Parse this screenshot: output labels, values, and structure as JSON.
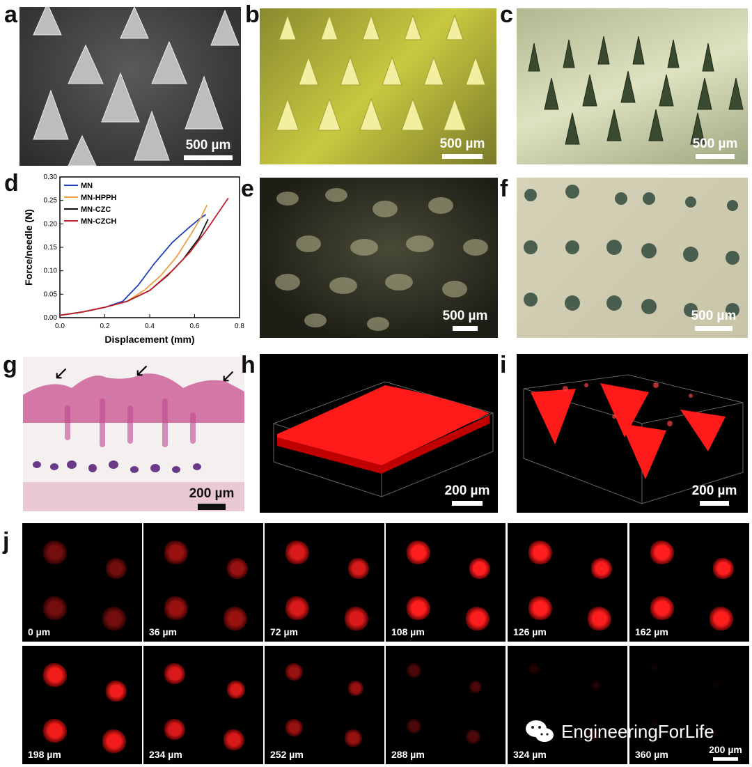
{
  "panels": {
    "a": {
      "label": "a",
      "scale": "500 µm"
    },
    "b": {
      "label": "b",
      "scale": "500 µm"
    },
    "c": {
      "label": "c",
      "scale": "500 µm"
    },
    "d": {
      "label": "d"
    },
    "e": {
      "label": "e",
      "scale": "500 µm"
    },
    "f": {
      "label": "f",
      "scale": "500 µm"
    },
    "g": {
      "label": "g",
      "scale": "200 µm"
    },
    "h": {
      "label": "h",
      "scale": "200 µm"
    },
    "i": {
      "label": "i",
      "scale": "200 µm"
    },
    "j": {
      "label": "j",
      "scale": "200 µm"
    }
  },
  "depths": [
    "0 µm",
    "36 µm",
    "72 µm",
    "108 µm",
    "126 µm",
    "162 µm",
    "198 µm",
    "234 µm",
    "252 µm",
    "288 µm",
    "324 µm",
    "360 µm"
  ],
  "watermark": {
    "text": "EngineeringForLife",
    "icon": "wechat-icon"
  },
  "chart_data": {
    "type": "line",
    "xlabel": "Displacement (mm)",
    "ylabel": "Force/needle (N)",
    "xlim": [
      0,
      0.8
    ],
    "ylim": [
      0,
      0.3
    ],
    "xticks": [
      "0.0",
      "0.2",
      "0.4",
      "0.6",
      "0.8"
    ],
    "yticks": [
      "0.00",
      "0.05",
      "0.10",
      "0.15",
      "0.20",
      "0.25",
      "0.30"
    ],
    "legend_position": "top-left",
    "series": [
      {
        "name": "MN",
        "color": "#1f3fbf",
        "x": [
          0,
          0.1,
          0.2,
          0.28,
          0.35,
          0.42,
          0.5,
          0.57,
          0.62,
          0.65
        ],
        "y": [
          0.005,
          0.012,
          0.022,
          0.035,
          0.07,
          0.115,
          0.16,
          0.19,
          0.21,
          0.22
        ]
      },
      {
        "name": "MN-HPPH",
        "color": "#e8a040",
        "x": [
          0,
          0.1,
          0.2,
          0.3,
          0.38,
          0.45,
          0.52,
          0.58,
          0.63,
          0.655
        ],
        "y": [
          0.005,
          0.012,
          0.022,
          0.035,
          0.06,
          0.09,
          0.13,
          0.175,
          0.215,
          0.24
        ]
      },
      {
        "name": "MN-CZC",
        "color": "#111111",
        "x": [
          0,
          0.1,
          0.2,
          0.3,
          0.4,
          0.48,
          0.55,
          0.62,
          0.66
        ],
        "y": [
          0.005,
          0.012,
          0.022,
          0.035,
          0.058,
          0.09,
          0.125,
          0.17,
          0.21
        ]
      },
      {
        "name": "MN-CZCH",
        "color": "#c0202a",
        "x": [
          0,
          0.1,
          0.2,
          0.3,
          0.4,
          0.5,
          0.58,
          0.65,
          0.7,
          0.75
        ],
        "y": [
          0.005,
          0.012,
          0.022,
          0.035,
          0.058,
          0.1,
          0.14,
          0.185,
          0.22,
          0.255
        ]
      }
    ]
  }
}
